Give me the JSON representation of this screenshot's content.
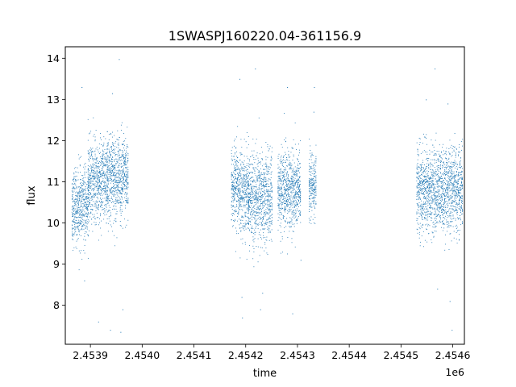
{
  "chart_data": {
    "type": "scatter",
    "title": "1SWASPJ160220.04-361156.9",
    "xlabel": "time",
    "ylabel": "flux",
    "x_offset_label": "1e6",
    "x_ticks": [
      2.4539,
      2.454,
      2.4541,
      2.4542,
      2.4543,
      2.4544,
      2.4545,
      2.4546
    ],
    "x_tick_labels": [
      "2.4539",
      "2.4540",
      "2.4541",
      "2.4542",
      "2.4543",
      "2.4544",
      "2.4545",
      "2.4546"
    ],
    "y_ticks": [
      8,
      9,
      10,
      11,
      12,
      13,
      14
    ],
    "y_tick_labels": [
      "8",
      "9",
      "10",
      "11",
      "12",
      "13",
      "14"
    ],
    "xlim": [
      2453851.5,
      2454622.5
    ],
    "ylim": [
      7.05,
      14.28
    ],
    "grid": false,
    "marker_color": "#1f77b4",
    "series": [
      {
        "segments": [
          {
            "x_start": 2453864.0,
            "x_end": 2453895.0,
            "y_center": 10.4,
            "y_spread": 0.8
          },
          {
            "x_start": 2453895.0,
            "x_end": 2453932.0,
            "y_center": 11.0,
            "y_spread": 0.9
          },
          {
            "x_start": 2453932.0,
            "x_end": 2453972.0,
            "y_center": 11.1,
            "y_spread": 0.9
          },
          {
            "x_start": 2454172.0,
            "x_end": 2454205.0,
            "y_center": 10.8,
            "y_spread": 0.9
          },
          {
            "x_start": 2454205.0,
            "x_end": 2454250.0,
            "y_center": 10.6,
            "y_spread": 1.0
          },
          {
            "x_start": 2454262.0,
            "x_end": 2454305.0,
            "y_center": 10.8,
            "y_spread": 0.9
          },
          {
            "x_start": 2454322.0,
            "x_end": 2454335.0,
            "y_center": 10.9,
            "y_spread": 0.7
          },
          {
            "x_start": 2454530.0,
            "x_end": 2454618.0,
            "y_center": 10.8,
            "y_spread": 0.9
          }
        ],
        "outliers": [
          {
            "x": 2453883,
            "y": 13.3
          },
          {
            "x": 2453888,
            "y": 8.6
          },
          {
            "x": 2453915,
            "y": 7.6
          },
          {
            "x": 2453938,
            "y": 7.4
          },
          {
            "x": 2453942,
            "y": 13.15
          },
          {
            "x": 2453955,
            "y": 13.98
          },
          {
            "x": 2453958,
            "y": 7.35
          },
          {
            "x": 2453962,
            "y": 7.9
          },
          {
            "x": 2454188,
            "y": 13.5
          },
          {
            "x": 2454192,
            "y": 8.2
          },
          {
            "x": 2454193,
            "y": 7.7
          },
          {
            "x": 2454218,
            "y": 13.75
          },
          {
            "x": 2454228,
            "y": 7.9
          },
          {
            "x": 2454232,
            "y": 8.3
          },
          {
            "x": 2454280,
            "y": 13.3
          },
          {
            "x": 2454290,
            "y": 7.8
          },
          {
            "x": 2454306,
            "y": 9.1
          },
          {
            "x": 2454331,
            "y": 12.7
          },
          {
            "x": 2454332,
            "y": 13.3
          },
          {
            "x": 2454548,
            "y": 13.0
          },
          {
            "x": 2454565,
            "y": 13.75
          },
          {
            "x": 2454570,
            "y": 8.4
          },
          {
            "x": 2454590,
            "y": 12.9
          },
          {
            "x": 2454594,
            "y": 8.1
          },
          {
            "x": 2454598,
            "y": 7.4
          }
        ]
      }
    ]
  }
}
